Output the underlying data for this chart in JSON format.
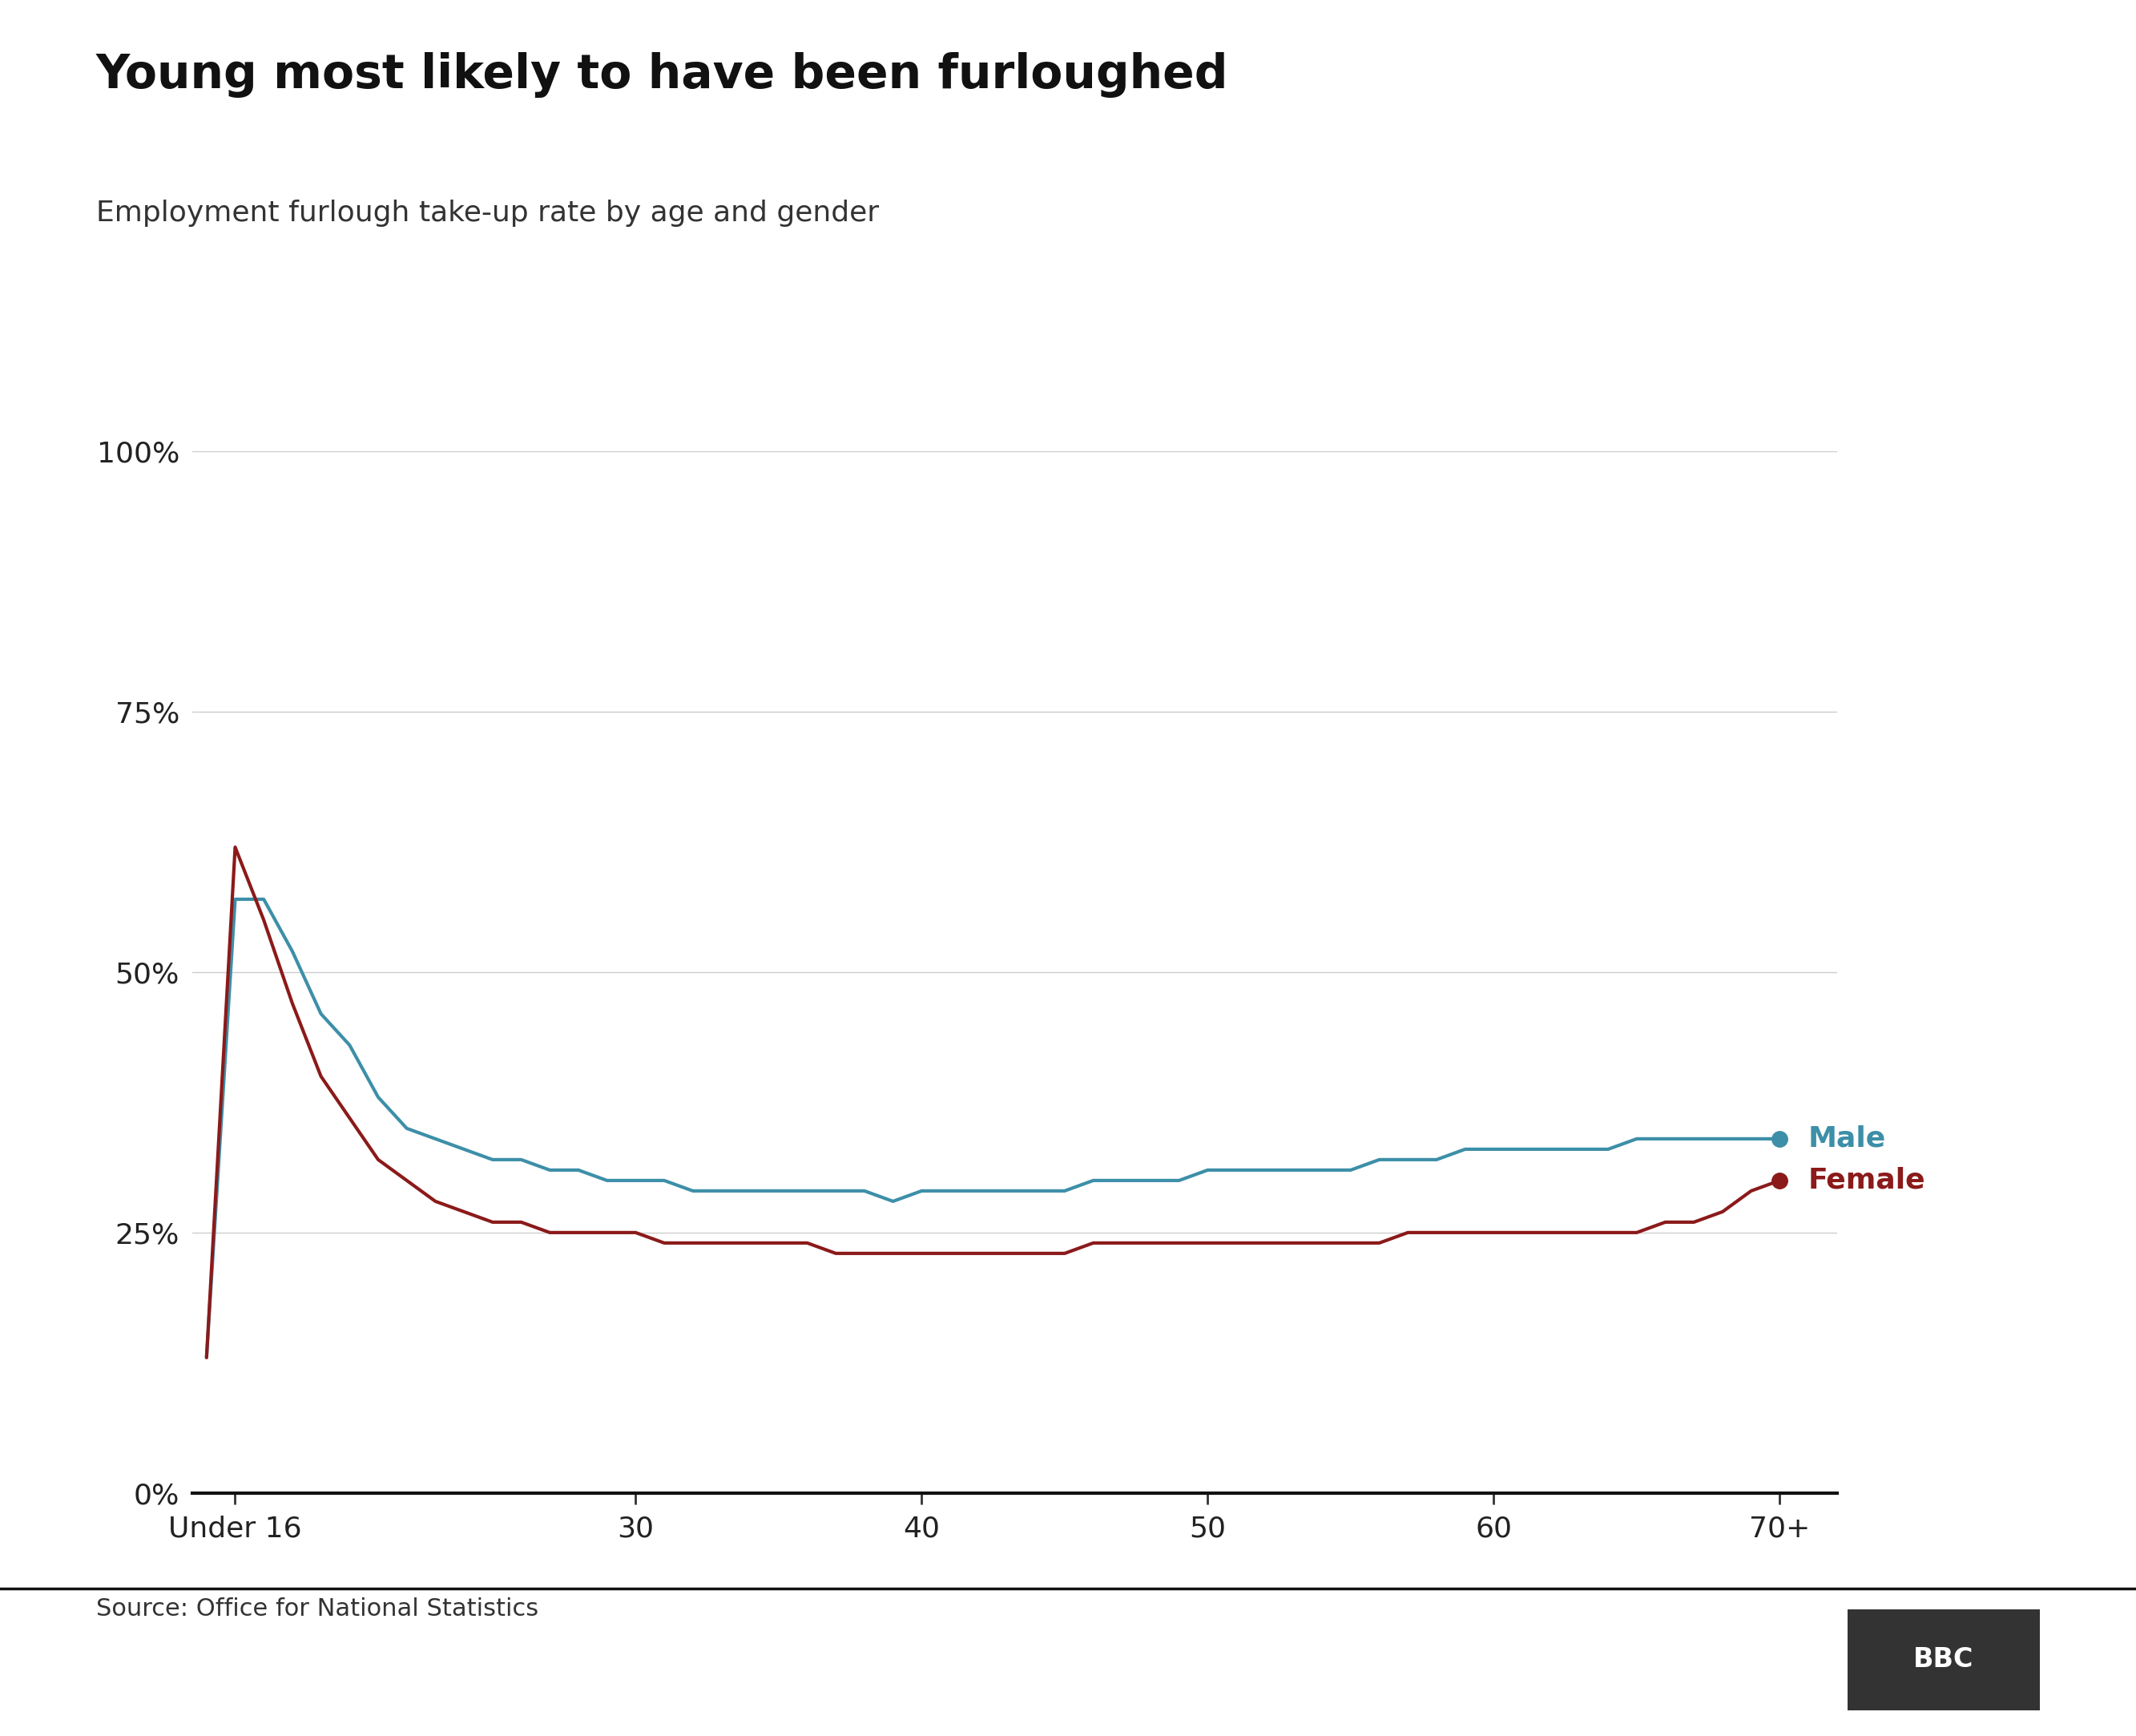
{
  "title": "Young most likely to have been furloughed",
  "subtitle": "Employment furlough take-up rate by age and gender",
  "source": "Source: Office for National Statistics",
  "male_color": "#3d8fa8",
  "female_color": "#8b1a1a",
  "background_color": "#ffffff",
  "ylim": [
    0,
    100
  ],
  "yticks": [
    0,
    25,
    50,
    75,
    100
  ],
  "ytick_labels": [
    "0%",
    "25%",
    "50%",
    "75%",
    "100%"
  ],
  "xtick_labels": [
    "Under 16",
    "30",
    "40",
    "50",
    "60",
    "70+"
  ],
  "x_values": [
    0,
    1,
    2,
    3,
    4,
    5,
    6,
    7,
    8,
    9,
    10,
    11,
    12,
    13,
    14,
    15,
    16,
    17,
    18,
    19,
    20,
    21,
    22,
    23,
    24,
    25,
    26,
    27,
    28,
    29,
    30,
    31,
    32,
    33,
    34,
    35,
    36,
    37,
    38,
    39,
    40,
    41,
    42,
    43,
    44,
    45,
    46,
    47,
    48,
    49,
    50,
    51,
    52,
    53,
    54,
    55
  ],
  "male_values": [
    13,
    57,
    57,
    52,
    46,
    43,
    38,
    35,
    34,
    33,
    32,
    32,
    31,
    31,
    30,
    30,
    30,
    29,
    29,
    29,
    29,
    29,
    29,
    29,
    28,
    29,
    29,
    29,
    29,
    29,
    29,
    30,
    30,
    30,
    30,
    31,
    31,
    31,
    31,
    31,
    31,
    32,
    32,
    32,
    33,
    33,
    33,
    33,
    33,
    33,
    34,
    34,
    34,
    34,
    34,
    34
  ],
  "female_values": [
    13,
    62,
    55,
    47,
    40,
    36,
    32,
    30,
    28,
    27,
    26,
    26,
    25,
    25,
    25,
    25,
    24,
    24,
    24,
    24,
    24,
    24,
    23,
    23,
    23,
    23,
    23,
    23,
    23,
    23,
    23,
    24,
    24,
    24,
    24,
    24,
    24,
    24,
    24,
    24,
    24,
    24,
    25,
    25,
    25,
    25,
    25,
    25,
    25,
    25,
    25,
    26,
    26,
    27,
    29,
    30
  ],
  "xtick_positions": [
    1,
    15,
    25,
    35,
    45,
    55
  ],
  "title_fontsize": 42,
  "subtitle_fontsize": 26,
  "tick_fontsize": 26,
  "legend_fontsize": 26,
  "source_fontsize": 22,
  "line_width": 3.0
}
